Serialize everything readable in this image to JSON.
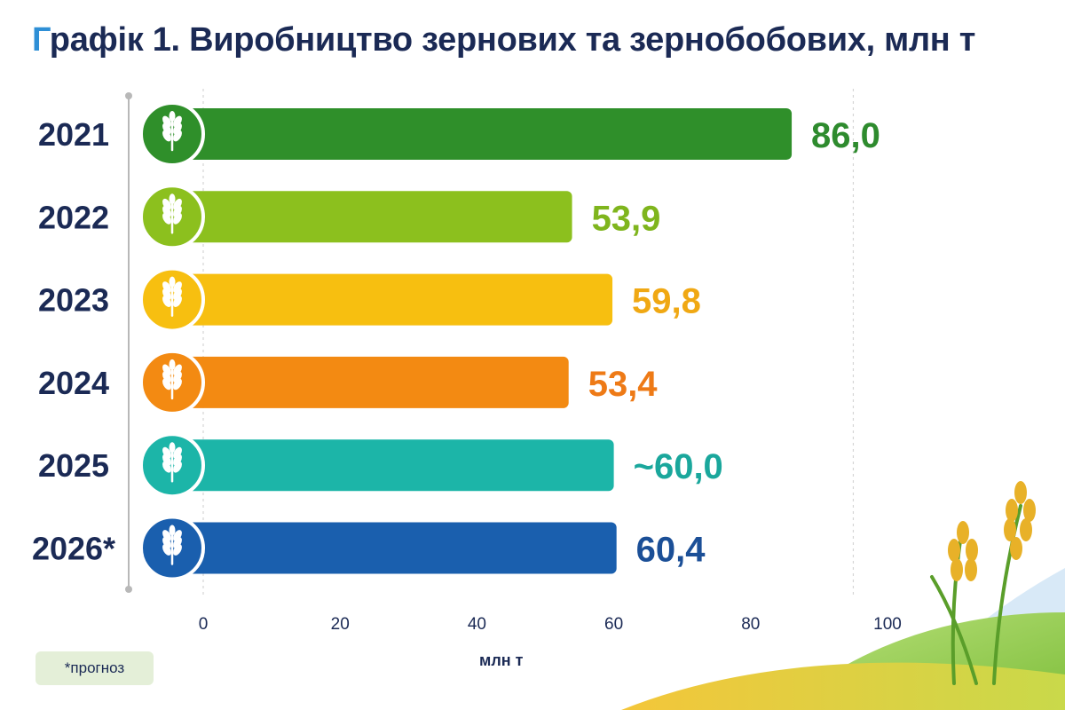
{
  "title_first_letter": "Г",
  "title_rest": "рафік 1. Виробництво зернових та зернобобових, млн т",
  "footnote": "*прогноз",
  "chart_data": {
    "type": "bar",
    "orientation": "horizontal",
    "title": "Графік 1. Виробництво зернових та зернобобових, млн т",
    "xlabel": "млн т",
    "xlim": [
      0,
      100
    ],
    "xticks": [
      "0",
      "20",
      "40",
      "60",
      "80",
      "100"
    ],
    "grid": true,
    "categories": [
      "2021",
      "2022",
      "2023",
      "2024",
      "2025",
      "2026*"
    ],
    "values": [
      86.0,
      53.9,
      59.8,
      53.4,
      60.0,
      60.4
    ],
    "value_labels": [
      "86,0",
      "53,9",
      "59,8",
      "53,4",
      "~60,0",
      "60,4"
    ],
    "colors": [
      "#2f8f2a",
      "#8cc01e",
      "#f7bf10",
      "#f38a12",
      "#1cb5a8",
      "#1a5fae"
    ],
    "label_colors": [
      "#2e8b2e",
      "#7fb51d",
      "#f0a813",
      "#ee7a16",
      "#1aa79c",
      "#1b4f97"
    ],
    "icon": "wheat-icon"
  }
}
